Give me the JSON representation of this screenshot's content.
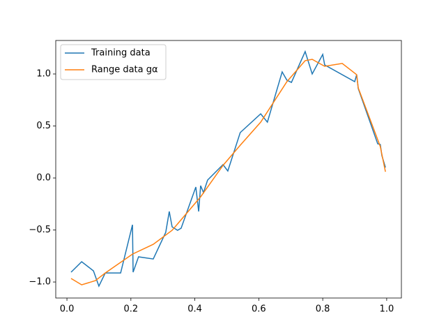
{
  "chart_data": {
    "type": "line",
    "series": [
      {
        "name": "Training data",
        "color": "#1f77b4",
        "x": [
          0.013,
          0.046,
          0.083,
          0.1,
          0.12,
          0.168,
          0.205,
          0.207,
          0.224,
          0.27,
          0.309,
          0.32,
          0.329,
          0.346,
          0.357,
          0.403,
          0.412,
          0.418,
          0.427,
          0.44,
          0.488,
          0.503,
          0.542,
          0.606,
          0.627,
          0.673,
          0.688,
          0.702,
          0.745,
          0.767,
          0.8,
          0.806,
          0.9,
          0.906,
          0.911,
          0.972,
          0.98,
          0.985,
          0.996
        ],
        "values": [
          -0.906,
          -0.805,
          -0.893,
          -1.04,
          -0.913,
          -0.913,
          -0.45,
          -0.906,
          -0.758,
          -0.779,
          -0.523,
          -0.322,
          -0.47,
          -0.503,
          -0.483,
          -0.087,
          -0.322,
          -0.074,
          -0.141,
          -0.02,
          0.128,
          0.067,
          0.436,
          0.617,
          0.537,
          1.02,
          0.94,
          0.919,
          1.215,
          1.0,
          1.188,
          1.087,
          0.926,
          0.993,
          0.859,
          0.329,
          0.322,
          0.215,
          0.101
        ]
      },
      {
        "name": "Range data gα",
        "color": "#ff7f0e",
        "x": [
          0.013,
          0.046,
          0.089,
          0.12,
          0.205,
          0.27,
          0.329,
          0.418,
          0.488,
          0.542,
          0.606,
          0.688,
          0.745,
          0.767,
          0.806,
          0.861,
          0.906,
          0.911,
          0.98,
          0.996
        ],
        "values": [
          -0.966,
          -1.027,
          -0.987,
          -0.913,
          -0.732,
          -0.638,
          -0.503,
          -0.181,
          0.121,
          0.315,
          0.537,
          0.926,
          1.128,
          1.141,
          1.074,
          1.101,
          0.993,
          0.866,
          0.302,
          0.06
        ]
      }
    ],
    "xlim": [
      -0.035,
      1.046
    ],
    "ylim": [
      -1.154,
      1.322
    ],
    "xticks": [
      {
        "value": 0,
        "label": "0.0"
      },
      {
        "value": 0.2,
        "label": "0.2"
      },
      {
        "value": 0.4,
        "label": "0.4"
      },
      {
        "value": 0.6,
        "label": "0.6"
      },
      {
        "value": 0.8,
        "label": "0.8"
      },
      {
        "value": 1,
        "label": "1.0"
      }
    ],
    "yticks": [
      {
        "value": -1,
        "label": "−1.0"
      },
      {
        "value": -0.5,
        "label": "−0.5"
      },
      {
        "value": 0,
        "label": "0.0"
      },
      {
        "value": 0.5,
        "label": "0.5"
      },
      {
        "value": 1,
        "label": "1.0"
      }
    ],
    "grid": false,
    "legend": "upper-left"
  }
}
